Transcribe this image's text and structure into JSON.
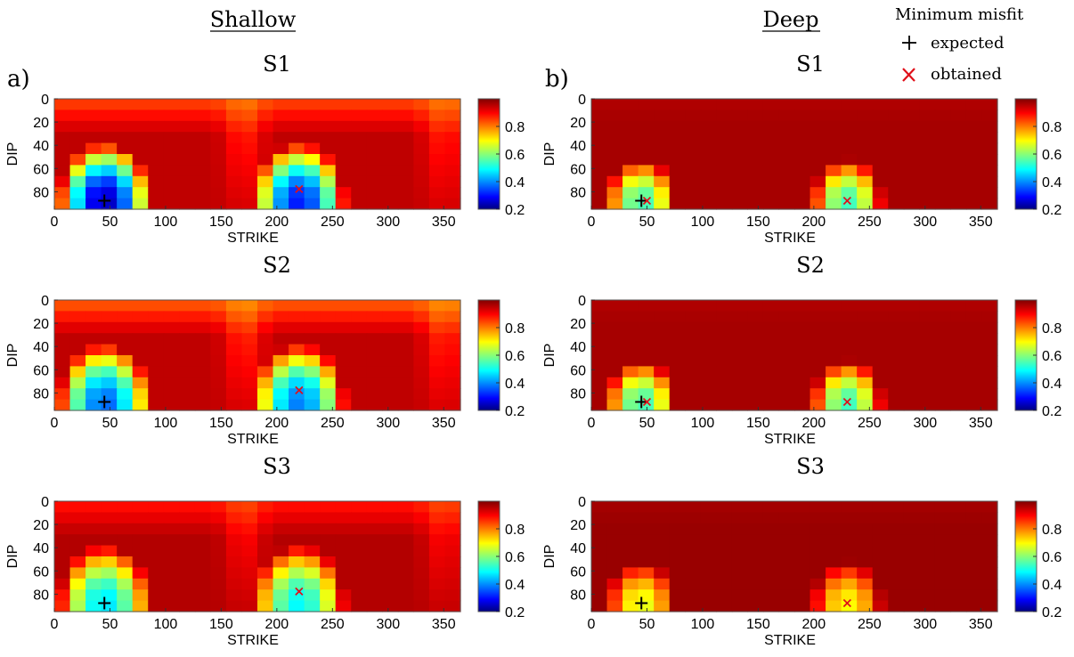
{
  "figure": {
    "columns": [
      {
        "heading": "Shallow",
        "tag": "a)"
      },
      {
        "heading": "Deep",
        "tag": "b)"
      }
    ],
    "legend": {
      "title": "Minimum misfit",
      "items": [
        {
          "symbol": "+",
          "label": "expected",
          "color": "#000000"
        },
        {
          "symbol": "x",
          "label": "obtained",
          "color": "#e0101a"
        }
      ]
    },
    "colormap": "jet"
  },
  "chart_data": [
    {
      "type": "heatmap",
      "column": "Shallow",
      "title": "S1",
      "xlabel": "STRIKE",
      "ylabel": "DIP",
      "xticks": [
        0,
        50,
        100,
        150,
        200,
        250,
        300,
        350
      ],
      "yticks": [
        0,
        20,
        40,
        60,
        80
      ],
      "xlim": [
        0,
        365
      ],
      "ylim": [
        0,
        95
      ],
      "clim": [
        0.2,
        1.0
      ],
      "cbar_ticks": [
        0.2,
        0.4,
        0.6,
        0.8
      ],
      "expected": {
        "strike": 45,
        "dip": 90
      },
      "obtained": {
        "strike": 220,
        "dip": 80
      },
      "min_value": 0.25,
      "min_value_second_lobe": 0.32,
      "top_value": 0.84,
      "background_value": 0.95
    },
    {
      "type": "heatmap",
      "column": "Deep",
      "title": "S1",
      "xlabel": "STRIKE",
      "ylabel": "DIP",
      "xticks": [
        0,
        50,
        100,
        150,
        200,
        250,
        300,
        350
      ],
      "yticks": [
        0,
        20,
        40,
        60,
        80
      ],
      "xlim": [
        0,
        365
      ],
      "ylim": [
        0,
        95
      ],
      "clim": [
        0.2,
        1.0
      ],
      "cbar_ticks": [
        0.2,
        0.4,
        0.6,
        0.8
      ],
      "expected": {
        "strike": 45,
        "dip": 90
      },
      "obtained": {
        "strike": 50,
        "dip": 90
      },
      "second_obtained": {
        "strike": 230,
        "dip": 90
      },
      "min_value": 0.55,
      "min_value_second_lobe": 0.55,
      "top_value": 0.96,
      "background_value": 0.97
    },
    {
      "type": "heatmap",
      "column": "Shallow",
      "title": "S2",
      "xlabel": "STRIKE",
      "ylabel": "DIP",
      "xticks": [
        0,
        50,
        100,
        150,
        200,
        250,
        300,
        350
      ],
      "yticks": [
        0,
        20,
        40,
        60,
        80
      ],
      "xlim": [
        0,
        365
      ],
      "ylim": [
        0,
        95
      ],
      "clim": [
        0.2,
        1.0
      ],
      "cbar_ticks": [
        0.2,
        0.4,
        0.6,
        0.8
      ],
      "expected": {
        "strike": 45,
        "dip": 90
      },
      "obtained": {
        "strike": 220,
        "dip": 80
      },
      "min_value": 0.38,
      "min_value_second_lobe": 0.4,
      "top_value": 0.82,
      "background_value": 0.95
    },
    {
      "type": "heatmap",
      "column": "Deep",
      "title": "S2",
      "xlabel": "STRIKE",
      "ylabel": "DIP",
      "xticks": [
        0,
        50,
        100,
        150,
        200,
        250,
        300,
        350
      ],
      "yticks": [
        0,
        20,
        40,
        60,
        80
      ],
      "xlim": [
        0,
        365
      ],
      "ylim": [
        0,
        95
      ],
      "clim": [
        0.2,
        1.0
      ],
      "cbar_ticks": [
        0.2,
        0.4,
        0.6,
        0.8
      ],
      "expected": {
        "strike": 45,
        "dip": 90
      },
      "obtained": {
        "strike": 50,
        "dip": 90
      },
      "second_obtained": {
        "strike": 230,
        "dip": 90
      },
      "min_value": 0.55,
      "min_value_second_lobe": 0.55,
      "top_value": 0.96,
      "background_value": 0.97
    },
    {
      "type": "heatmap",
      "column": "Shallow",
      "title": "S3",
      "xlabel": "STRIKE",
      "ylabel": "DIP",
      "xticks": [
        0,
        50,
        100,
        150,
        200,
        250,
        300,
        350
      ],
      "yticks": [
        0,
        20,
        40,
        60,
        80
      ],
      "xlim": [
        0,
        365
      ],
      "ylim": [
        0,
        95
      ],
      "clim": [
        0.2,
        1.0
      ],
      "cbar_ticks": [
        0.2,
        0.4,
        0.6,
        0.8
      ],
      "expected": {
        "strike": 45,
        "dip": 90
      },
      "obtained": {
        "strike": 220,
        "dip": 80
      },
      "min_value": 0.48,
      "min_value_second_lobe": 0.5,
      "top_value": 0.88,
      "background_value": 0.96
    },
    {
      "type": "heatmap",
      "column": "Deep",
      "title": "S3",
      "xlabel": "STRIKE",
      "ylabel": "DIP",
      "xticks": [
        0,
        50,
        100,
        150,
        200,
        250,
        300,
        350
      ],
      "yticks": [
        0,
        20,
        40,
        60,
        80
      ],
      "xlim": [
        0,
        365
      ],
      "ylim": [
        0,
        95
      ],
      "clim": [
        0.2,
        1.0
      ],
      "cbar_ticks": [
        0.2,
        0.4,
        0.6,
        0.8
      ],
      "expected": {
        "strike": 45,
        "dip": 90
      },
      "obtained": {
        "strike": 230,
        "dip": 90
      },
      "min_value": 0.68,
      "min_value_second_lobe": 0.7,
      "top_value": 0.97,
      "background_value": 0.98
    }
  ]
}
